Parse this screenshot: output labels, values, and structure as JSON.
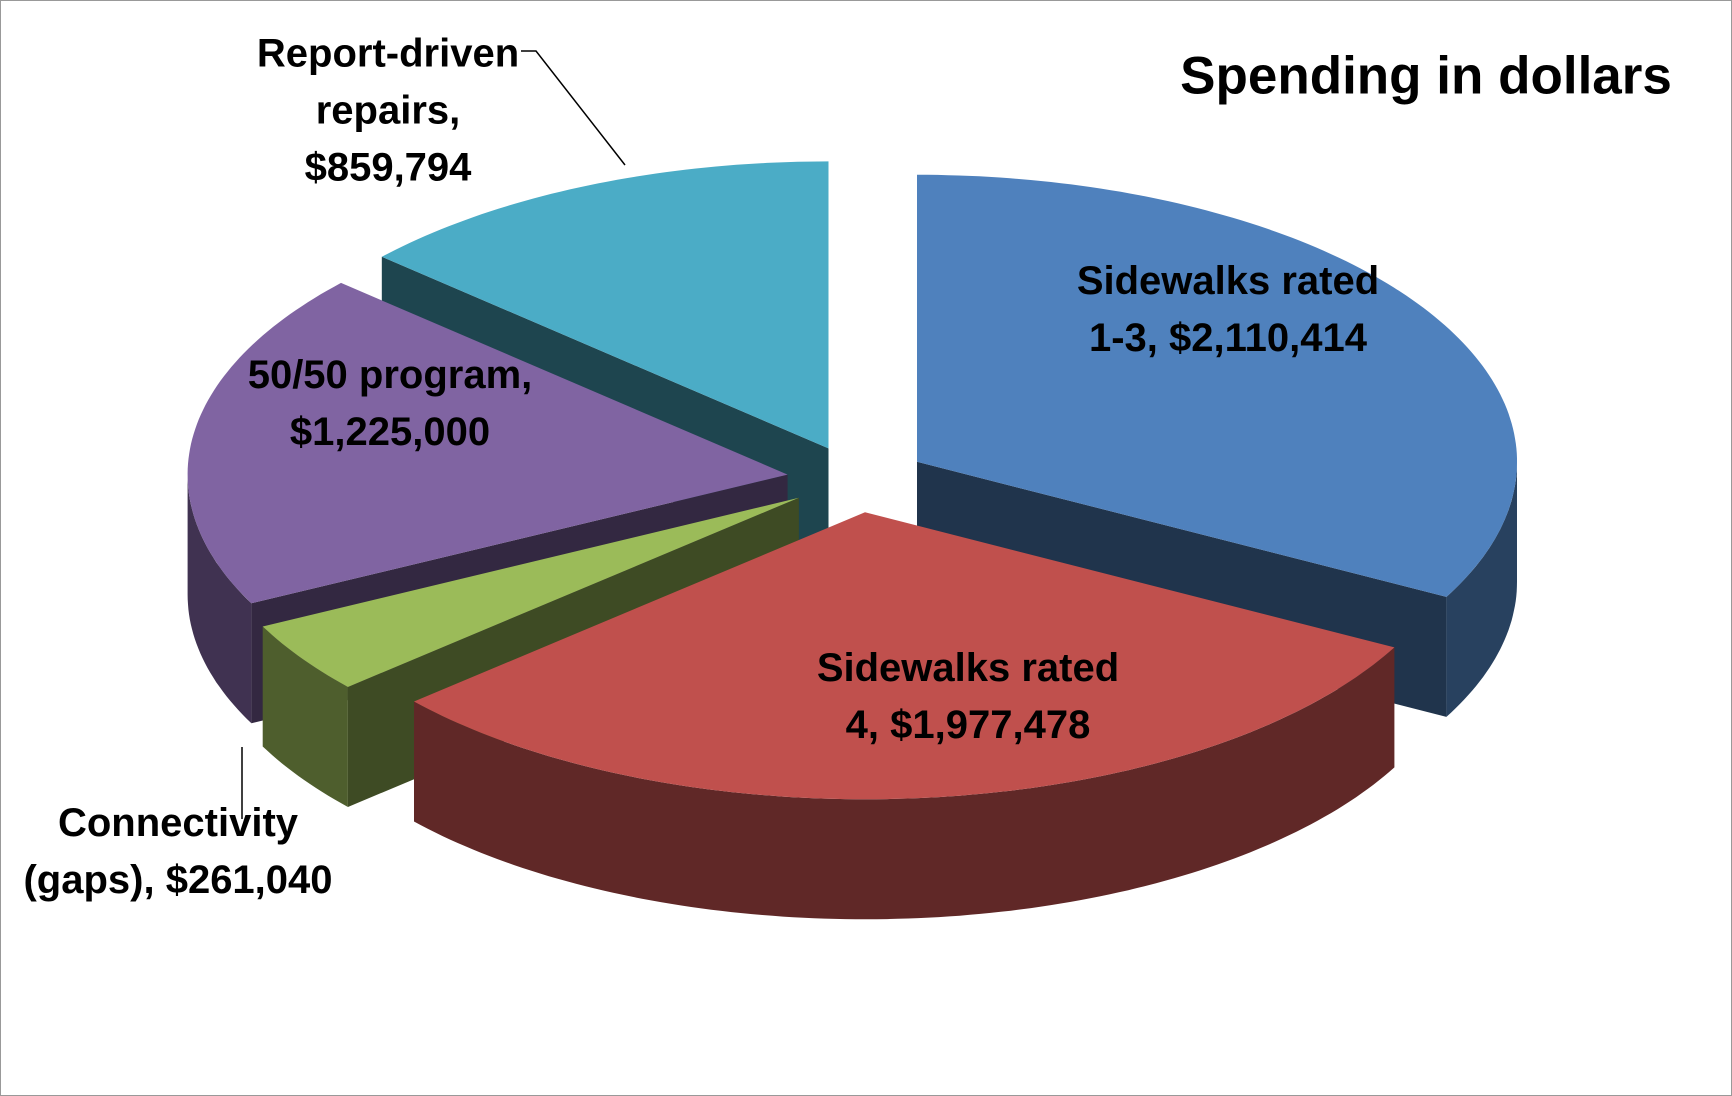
{
  "chart_data": {
    "type": "pie",
    "title": "Spending in dollars",
    "values": [
      2110414,
      1977478,
      261040,
      1225000,
      859794
    ],
    "value_labels": [
      "Sidewalks rated 1-3, $2,110,414",
      "Sidewalks rated 4, $1,977,478",
      "Connectivity (gaps), $261,040",
      "50/50 program, $1,225,000",
      "Report-driven repairs, $859,794"
    ],
    "colors": [
      "#4f81bd",
      "#c0504d",
      "#9bbb59",
      "#8064a2",
      "#4bacc6"
    ],
    "three_d": true,
    "exploded": true
  }
}
